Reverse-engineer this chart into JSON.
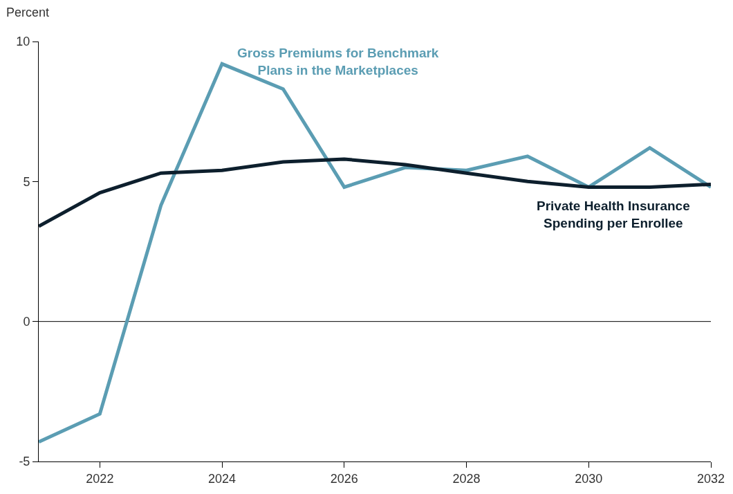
{
  "chart_data": {
    "type": "line",
    "ylabel": "Percent",
    "x": [
      2021,
      2022,
      2023,
      2024,
      2025,
      2026,
      2027,
      2028,
      2029,
      2030,
      2031,
      2032
    ],
    "series": [
      {
        "name": "Gross Premiums for Benchmark Plans in the Marketplaces",
        "color": "#5b9db3",
        "values": [
          -4.3,
          -3.3,
          4.15,
          9.2,
          8.3,
          4.8,
          5.5,
          5.4,
          5.9,
          4.8,
          6.2,
          4.8
        ]
      },
      {
        "name": "Private Health Insurance Spending per Enrollee",
        "color": "#0d1f2d",
        "values": [
          3.4,
          4.6,
          5.3,
          5.4,
          5.7,
          5.8,
          5.6,
          5.3,
          5.0,
          4.8,
          4.8,
          4.9
        ]
      }
    ],
    "xlim": [
      2021,
      2032
    ],
    "xticks": [
      2022,
      2024,
      2026,
      2028,
      2030,
      2032
    ],
    "ylim": [
      -5,
      10
    ],
    "yticks": [
      -5,
      0,
      5,
      10
    ],
    "ref_lines": [
      {
        "axis": "y",
        "value": 0,
        "color": "#000000"
      }
    ],
    "grid": false,
    "legend": false,
    "marker": "none",
    "line_style": "solid"
  }
}
